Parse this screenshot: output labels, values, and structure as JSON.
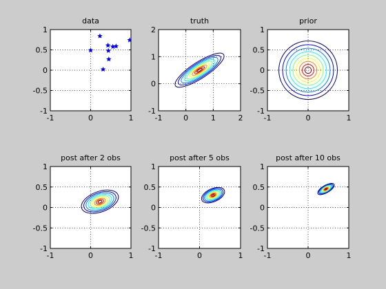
{
  "chart_data": [
    {
      "type": "scatter",
      "title": "data",
      "xlim": [
        -1,
        1
      ],
      "ylim": [
        -1,
        1
      ],
      "xticks": [
        -1,
        0,
        1
      ],
      "yticks": [
        -1,
        -0.5,
        0,
        0.5,
        1
      ],
      "xtick_labels": [
        "-1",
        "0",
        "1"
      ],
      "ytick_labels": [
        "-1",
        "-0.5",
        "0",
        "0.5",
        "1"
      ],
      "grid": true,
      "marker": "star",
      "points": [
        {
          "x": 0.0,
          "y": 0.49
        },
        {
          "x": 0.23,
          "y": 0.84
        },
        {
          "x": 0.31,
          "y": 0.02
        },
        {
          "x": 0.43,
          "y": 0.61
        },
        {
          "x": 0.44,
          "y": 0.48
        },
        {
          "x": 0.45,
          "y": 0.27
        },
        {
          "x": 0.55,
          "y": 0.58
        },
        {
          "x": 0.63,
          "y": 0.59
        },
        {
          "x": 0.97,
          "y": 0.74
        }
      ]
    },
    {
      "type": "contour",
      "title": "truth",
      "xlim": [
        -1,
        2
      ],
      "ylim": [
        -1,
        2
      ],
      "xticks": [
        -1,
        0,
        1,
        2
      ],
      "yticks": [
        -1,
        0,
        1,
        2
      ],
      "xtick_labels": [
        "-1",
        "0",
        "1",
        "2"
      ],
      "ytick_labels": [
        "-1",
        "0",
        "1",
        "2"
      ],
      "grid": true,
      "center": [
        0.5,
        0.5
      ],
      "rx": 1.05,
      "ry": 0.3,
      "angle_deg": 33
    },
    {
      "type": "contour",
      "title": "prior",
      "xlim": [
        -1,
        1
      ],
      "ylim": [
        -1,
        1
      ],
      "xticks": [
        -1,
        0,
        1
      ],
      "yticks": [
        -1,
        -0.5,
        0,
        0.5,
        1
      ],
      "xtick_labels": [
        "-1",
        "0",
        "1"
      ],
      "ytick_labels": [
        "-1",
        "-0.5",
        "0",
        "0.5",
        "1"
      ],
      "grid": true,
      "center": [
        0,
        0
      ],
      "rx": 0.72,
      "ry": 0.72,
      "angle_deg": 0
    },
    {
      "type": "contour",
      "title": "post after 2 obs",
      "xlim": [
        -1,
        1
      ],
      "ylim": [
        -1,
        1
      ],
      "xticks": [
        -1,
        0,
        1
      ],
      "yticks": [
        -1,
        -0.5,
        0,
        0.5,
        1
      ],
      "xtick_labels": [
        "-1",
        "0",
        "1"
      ],
      "ytick_labels": [
        "-1",
        "-0.5",
        "0",
        "0.5",
        "1"
      ],
      "grid": true,
      "center": [
        0.23,
        0.14
      ],
      "rx": 0.48,
      "ry": 0.25,
      "angle_deg": 20
    },
    {
      "type": "contour",
      "title": "post after 5 obs",
      "xlim": [
        -1,
        1
      ],
      "ylim": [
        -1,
        1
      ],
      "xticks": [
        -1,
        0,
        1
      ],
      "yticks": [
        -1,
        -0.5,
        0,
        0.5,
        1
      ],
      "xtick_labels": [
        "-1",
        "0",
        "1"
      ],
      "ytick_labels": [
        "-1",
        "-0.5",
        "0",
        "0.5",
        "1"
      ],
      "grid": true,
      "center": [
        0.33,
        0.3
      ],
      "rx": 0.3,
      "ry": 0.16,
      "angle_deg": 24
    },
    {
      "type": "contour",
      "title": "post after 10 obs",
      "xlim": [
        -1,
        1
      ],
      "ylim": [
        -1,
        1
      ],
      "xticks": [
        -1,
        0,
        1
      ],
      "yticks": [
        -1,
        -0.5,
        0,
        0.5,
        1
      ],
      "xtick_labels": [
        "-1",
        "0",
        "1"
      ],
      "ytick_labels": [
        "-1",
        "-0.5",
        "0",
        "0.5",
        "1"
      ],
      "grid": true,
      "center": [
        0.44,
        0.45
      ],
      "rx": 0.23,
      "ry": 0.09,
      "angle_deg": 30
    }
  ],
  "contour_colors": [
    "#00007f",
    "#0000ff",
    "#0080ff",
    "#00ffff",
    "#80ff80",
    "#ffff00",
    "#ff8000",
    "#ff0000",
    "#7f0000"
  ]
}
